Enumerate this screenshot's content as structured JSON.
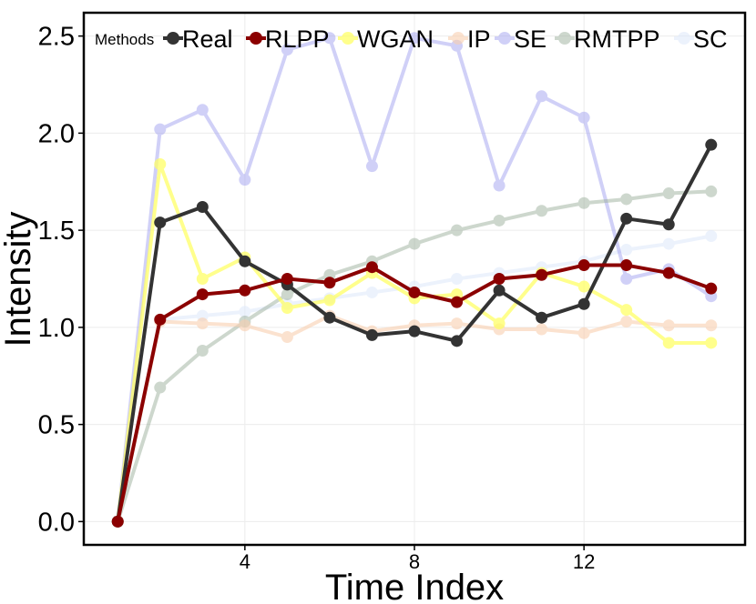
{
  "chart_data": {
    "type": "line",
    "title": "",
    "xlabel": "Time Index",
    "ylabel": "Intensity",
    "xlim": [
      0.2,
      15.8
    ],
    "ylim": [
      -0.12,
      2.62
    ],
    "xticks": [
      4,
      8,
      12
    ],
    "xtick_labels": [
      "4",
      "8",
      "12"
    ],
    "yticks": [
      0.0,
      0.5,
      1.0,
      1.5,
      2.0,
      2.5
    ],
    "ytick_labels": [
      "0.0",
      "0.5",
      "1.0",
      "1.5",
      "2.0",
      "2.5"
    ],
    "grid": true,
    "legend": {
      "title": "Methods",
      "position": "top"
    },
    "x": [
      1,
      2,
      3,
      4,
      5,
      6,
      7,
      8,
      9,
      10,
      11,
      12,
      13,
      14,
      15
    ],
    "series": [
      {
        "name": "SC",
        "color": "#dde8fb",
        "opacity": 0.55,
        "values": [
          0.0,
          1.04,
          1.06,
          1.08,
          1.12,
          1.15,
          1.18,
          1.21,
          1.25,
          1.28,
          1.31,
          1.34,
          1.4,
          1.43,
          1.47
        ]
      },
      {
        "name": "SE",
        "color": "#9999ee",
        "opacity": 0.45,
        "values": [
          0.0,
          2.02,
          2.12,
          1.76,
          2.43,
          2.49,
          1.83,
          2.49,
          2.45,
          1.73,
          2.19,
          2.08,
          1.25,
          1.3,
          1.16
        ]
      },
      {
        "name": "RMTPP",
        "color": "#9db09d",
        "opacity": 0.5,
        "values": [
          0.0,
          0.69,
          0.88,
          1.03,
          1.17,
          1.27,
          1.34,
          1.43,
          1.5,
          1.55,
          1.6,
          1.64,
          1.66,
          1.69,
          1.7
        ]
      },
      {
        "name": "IP",
        "color": "#f9cfb0",
        "opacity": 0.6,
        "values": [
          0.0,
          1.03,
          1.02,
          1.01,
          0.95,
          1.06,
          0.98,
          1.01,
          1.02,
          0.99,
          0.99,
          0.97,
          1.03,
          1.01,
          1.01
        ]
      },
      {
        "name": "WGAN",
        "color": "#ffff66",
        "opacity": 0.75,
        "values": [
          0.0,
          1.84,
          1.25,
          1.36,
          1.1,
          1.14,
          1.28,
          1.15,
          1.17,
          1.02,
          1.28,
          1.21,
          1.09,
          0.92,
          0.92
        ]
      },
      {
        "name": "Real",
        "color": "#333333",
        "opacity": 1.0,
        "values": [
          0.0,
          1.54,
          1.62,
          1.34,
          1.22,
          1.05,
          0.96,
          0.98,
          0.93,
          1.19,
          1.05,
          1.12,
          1.56,
          1.53,
          1.94
        ]
      },
      {
        "name": "RLPP",
        "color": "#8b0000",
        "opacity": 1.0,
        "values": [
          0.0,
          1.04,
          1.17,
          1.19,
          1.25,
          1.23,
          1.31,
          1.18,
          1.13,
          1.25,
          1.27,
          1.32,
          1.32,
          1.28,
          1.2
        ]
      }
    ],
    "legend_order": [
      "Real",
      "RLPP",
      "WGAN",
      "IP",
      "SE",
      "RMTPP",
      "SC"
    ]
  }
}
